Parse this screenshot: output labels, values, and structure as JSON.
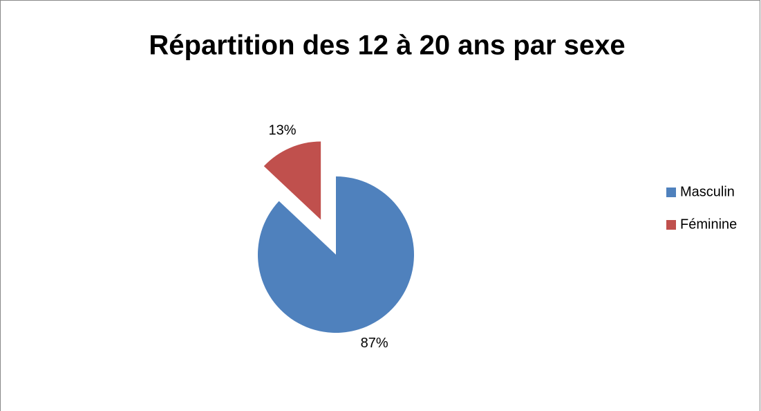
{
  "chart_data": {
    "type": "pie",
    "title": "Répartition des 12 à 20 ans par sexe",
    "categories": [
      "Masculin",
      "Féminine"
    ],
    "values": [
      87,
      13
    ],
    "value_labels": [
      "87%",
      "13%"
    ],
    "colors": [
      "#4f81bd",
      "#c0504d"
    ],
    "legend": "right"
  }
}
